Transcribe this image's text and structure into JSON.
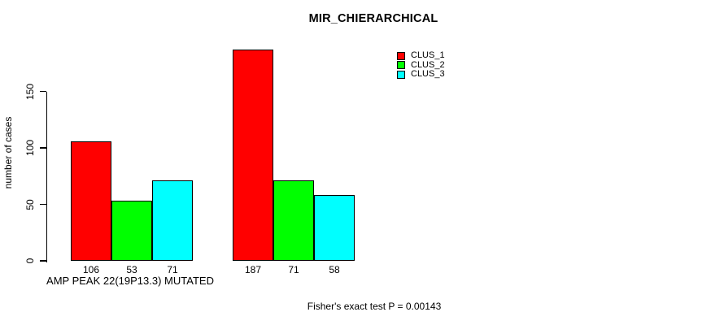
{
  "page": {
    "title": "MIR_CHIERARCHICAL",
    "y_axis_label": "number of cases",
    "x_axis_label": "AMP PEAK 22(19P13.3) MUTATED",
    "footer_note": "Fisher's exact test P = 0.00143"
  },
  "chart_data": {
    "type": "bar",
    "title": "MIR_CHIERARCHICAL",
    "xlabel": "AMP PEAK 22(19P13.3) MUTATED",
    "ylabel": "number of cases",
    "annotation": "Fisher's exact test P = 0.00143",
    "groups": [
      "AMP PEAK 22(19P13.3) MUTATED",
      ""
    ],
    "series": [
      {
        "name": "CLUS_1",
        "color": "#ff0000",
        "values": [
          106,
          187
        ]
      },
      {
        "name": "CLUS_2",
        "color": "#00ff00",
        "values": [
          53,
          71
        ]
      },
      {
        "name": "CLUS_3",
        "color": "#00ffff",
        "values": [
          71,
          58
        ]
      }
    ],
    "bar_value_labels": [
      [
        106,
        53,
        71
      ],
      [
        187,
        71,
        58
      ]
    ],
    "yticks": [
      0,
      50,
      100,
      150
    ],
    "ylim": [
      0,
      190
    ],
    "grid": false,
    "legend_position": "top-right",
    "bar_border_color": "#000000",
    "background_color": "#ffffff"
  }
}
